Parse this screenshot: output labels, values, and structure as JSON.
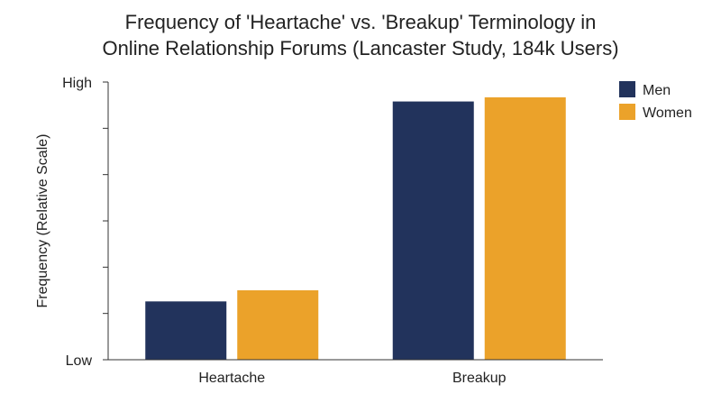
{
  "chart_data": {
    "type": "bar",
    "title_lines": [
      "Frequency of 'Heartache' vs. 'Breakup' Terminology in",
      "Online Relationship Forums (Lancaster Study, 184k Users)"
    ],
    "categories": [
      "Heartache",
      "Breakup"
    ],
    "series": [
      {
        "name": "Men",
        "values": [
          0.21,
          0.93
        ]
      },
      {
        "name": "Women",
        "values": [
          0.25,
          0.945
        ]
      }
    ],
    "colors": {
      "Men": "#22335c",
      "Women": "#eba22a"
    },
    "ylabel": "Frequency (Relative Scale)",
    "xlabel": "",
    "ytick_labels": {
      "low": "Low",
      "high": "High"
    },
    "ylim": [
      0,
      1
    ],
    "minor_ticks": 6,
    "legend_position": "top-right",
    "grid": false
  }
}
